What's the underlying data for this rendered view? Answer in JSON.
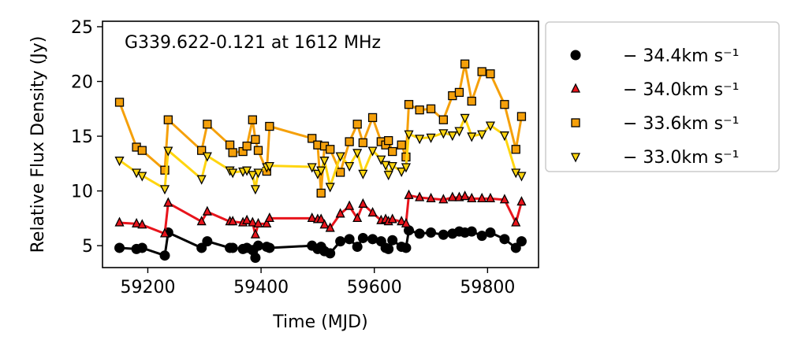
{
  "chart_data": {
    "type": "line",
    "title": "G339.622-0.121 at 1612 MHz",
    "xlabel": "Time (MJD)",
    "ylabel": "Relative Flux Density (Jy)",
    "xlim": [
      59120,
      59890
    ],
    "ylim": [
      3,
      25.5
    ],
    "xticks": [
      59200,
      59400,
      59600,
      59800
    ],
    "yticks": [
      5,
      10,
      15,
      20,
      25
    ],
    "grid": false,
    "legend": "outside-right",
    "series": [
      {
        "name": "− 34.4km s⁻¹",
        "color": "#000000",
        "marker": "circle",
        "points": [
          [
            59150,
            4.8
          ],
          [
            59180,
            4.7
          ],
          [
            59190,
            4.8
          ],
          [
            59230,
            4.1
          ],
          [
            59236,
            6.2
          ],
          [
            59295,
            4.8
          ],
          [
            59305,
            5.4
          ],
          [
            59345,
            4.8
          ],
          [
            59350,
            4.8
          ],
          [
            59368,
            4.7
          ],
          [
            59375,
            4.8
          ],
          [
            59385,
            4.6
          ],
          [
            59390,
            3.9
          ],
          [
            59395,
            5.0
          ],
          [
            59410,
            4.9
          ],
          [
            59415,
            4.8
          ],
          [
            59490,
            5.0
          ],
          [
            59500,
            4.7
          ],
          [
            59506,
            4.9
          ],
          [
            59512,
            4.5
          ],
          [
            59522,
            4.3
          ],
          [
            59540,
            5.4
          ],
          [
            59556,
            5.6
          ],
          [
            59570,
            4.9
          ],
          [
            59580,
            5.7
          ],
          [
            59597,
            5.6
          ],
          [
            59612,
            5.4
          ],
          [
            59620,
            4.8
          ],
          [
            59625,
            4.7
          ],
          [
            59632,
            5.5
          ],
          [
            59648,
            4.9
          ],
          [
            59656,
            4.8
          ],
          [
            59661,
            6.4
          ],
          [
            59680,
            6.1
          ],
          [
            59700,
            6.2
          ],
          [
            59722,
            6.0
          ],
          [
            59738,
            6.1
          ],
          [
            59750,
            6.3
          ],
          [
            59760,
            6.2
          ],
          [
            59772,
            6.3
          ],
          [
            59790,
            5.9
          ],
          [
            59805,
            6.2
          ],
          [
            59830,
            5.6
          ],
          [
            59850,
            4.8
          ],
          [
            59860,
            5.4
          ]
        ]
      },
      {
        "name": "− 34.0km s⁻¹",
        "color": "#e8141c",
        "marker": "triangle-up",
        "points": [
          [
            59150,
            7.1
          ],
          [
            59180,
            7.0
          ],
          [
            59190,
            6.9
          ],
          [
            59230,
            6.1
          ],
          [
            59236,
            8.9
          ],
          [
            59295,
            7.2
          ],
          [
            59305,
            8.1
          ],
          [
            59345,
            7.2
          ],
          [
            59350,
            7.2
          ],
          [
            59368,
            7.1
          ],
          [
            59375,
            7.3
          ],
          [
            59385,
            7.1
          ],
          [
            59390,
            6.0
          ],
          [
            59395,
            7.0
          ],
          [
            59410,
            7.0
          ],
          [
            59415,
            7.5
          ],
          [
            59490,
            7.5
          ],
          [
            59500,
            7.4
          ],
          [
            59506,
            7.4
          ],
          [
            59512,
            6.9
          ],
          [
            59522,
            6.6
          ],
          [
            59540,
            7.9
          ],
          [
            59556,
            8.6
          ],
          [
            59570,
            7.5
          ],
          [
            59580,
            8.8
          ],
          [
            59597,
            8.0
          ],
          [
            59612,
            7.3
          ],
          [
            59620,
            7.4
          ],
          [
            59625,
            7.2
          ],
          [
            59632,
            7.4
          ],
          [
            59648,
            7.2
          ],
          [
            59656,
            7.0
          ],
          [
            59661,
            9.6
          ],
          [
            59680,
            9.4
          ],
          [
            59700,
            9.3
          ],
          [
            59722,
            9.2
          ],
          [
            59738,
            9.4
          ],
          [
            59750,
            9.4
          ],
          [
            59760,
            9.5
          ],
          [
            59772,
            9.3
          ],
          [
            59790,
            9.3
          ],
          [
            59805,
            9.3
          ],
          [
            59830,
            9.2
          ],
          [
            59850,
            7.1
          ],
          [
            59860,
            9.0
          ]
        ]
      },
      {
        "name": "− 33.6km s⁻¹",
        "color": "#f5a00a",
        "marker": "square",
        "points": [
          [
            59150,
            18.1
          ],
          [
            59180,
            14.0
          ],
          [
            59190,
            13.7
          ],
          [
            59230,
            11.9
          ],
          [
            59236,
            16.5
          ],
          [
            59295,
            13.7
          ],
          [
            59305,
            16.1
          ],
          [
            59345,
            14.2
          ],
          [
            59350,
            13.5
          ],
          [
            59368,
            13.6
          ],
          [
            59375,
            14.1
          ],
          [
            59385,
            16.5
          ],
          [
            59390,
            14.7
          ],
          [
            59395,
            13.7
          ],
          [
            59410,
            11.8
          ],
          [
            59415,
            15.9
          ],
          [
            59490,
            14.8
          ],
          [
            59500,
            14.2
          ],
          [
            59506,
            9.8
          ],
          [
            59512,
            14.1
          ],
          [
            59522,
            13.8
          ],
          [
            59540,
            11.7
          ],
          [
            59556,
            14.5
          ],
          [
            59570,
            16.1
          ],
          [
            59580,
            14.4
          ],
          [
            59597,
            16.7
          ],
          [
            59612,
            14.5
          ],
          [
            59620,
            14.2
          ],
          [
            59625,
            14.6
          ],
          [
            59632,
            13.6
          ],
          [
            59648,
            14.2
          ],
          [
            59656,
            13.1
          ],
          [
            59661,
            17.9
          ],
          [
            59680,
            17.4
          ],
          [
            59700,
            17.5
          ],
          [
            59722,
            16.5
          ],
          [
            59738,
            18.7
          ],
          [
            59750,
            19.0
          ],
          [
            59760,
            21.6
          ],
          [
            59772,
            18.2
          ],
          [
            59790,
            20.9
          ],
          [
            59805,
            20.7
          ],
          [
            59830,
            17.9
          ],
          [
            59850,
            13.8
          ],
          [
            59860,
            16.8
          ]
        ]
      },
      {
        "name": "− 33.0km s⁻¹",
        "color": "#ffd50f",
        "marker": "triangle-down",
        "points": [
          [
            59150,
            12.8
          ],
          [
            59180,
            11.7
          ],
          [
            59190,
            11.4
          ],
          [
            59230,
            10.2
          ],
          [
            59236,
            13.7
          ],
          [
            59295,
            11.1
          ],
          [
            59305,
            13.2
          ],
          [
            59345,
            11.9
          ],
          [
            59350,
            11.7
          ],
          [
            59368,
            11.8
          ],
          [
            59375,
            11.9
          ],
          [
            59385,
            11.5
          ],
          [
            59390,
            10.2
          ],
          [
            59395,
            11.7
          ],
          [
            59410,
            12.2
          ],
          [
            59415,
            12.3
          ],
          [
            59490,
            12.2
          ],
          [
            59500,
            11.6
          ],
          [
            59506,
            11.9
          ],
          [
            59512,
            12.8
          ],
          [
            59522,
            10.4
          ],
          [
            59540,
            13.2
          ],
          [
            59556,
            12.3
          ],
          [
            59570,
            13.5
          ],
          [
            59580,
            11.6
          ],
          [
            59597,
            13.7
          ],
          [
            59612,
            12.9
          ],
          [
            59620,
            12.4
          ],
          [
            59625,
            11.5
          ],
          [
            59632,
            12.3
          ],
          [
            59648,
            11.8
          ],
          [
            59656,
            12.2
          ],
          [
            59661,
            15.2
          ],
          [
            59680,
            14.8
          ],
          [
            59700,
            14.9
          ],
          [
            59722,
            15.3
          ],
          [
            59738,
            15.1
          ],
          [
            59750,
            15.5
          ],
          [
            59760,
            16.7
          ],
          [
            59772,
            15.0
          ],
          [
            59790,
            15.2
          ],
          [
            59805,
            16.0
          ],
          [
            59830,
            15.1
          ],
          [
            59850,
            11.7
          ],
          [
            59860,
            11.4
          ]
        ]
      }
    ]
  }
}
